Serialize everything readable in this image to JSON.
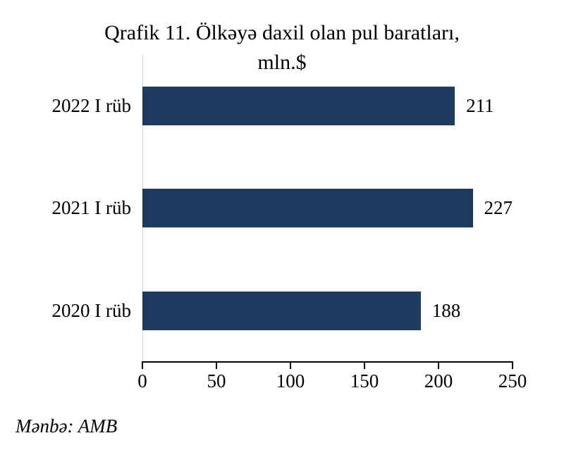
{
  "chart_data": {
    "type": "bar",
    "orientation": "horizontal",
    "title_line1": "Qrafik 11. Ölkəyə daxil olan pul baratları,",
    "title_line2": "mln.$",
    "categories": [
      "2022 I rüb",
      "2021 I rüb",
      "2020 I rüb"
    ],
    "values": [
      211,
      227,
      188
    ],
    "xlim": [
      0,
      250
    ],
    "x_ticks": [
      0,
      50,
      100,
      150,
      200,
      250
    ],
    "legend": "none",
    "grid": "zero-baseline-only",
    "bar_color": "#1f3a5f",
    "gridline_color": "#d9d9d9",
    "axis_color": "#000000",
    "source_note": "Mənbə: AMB"
  }
}
